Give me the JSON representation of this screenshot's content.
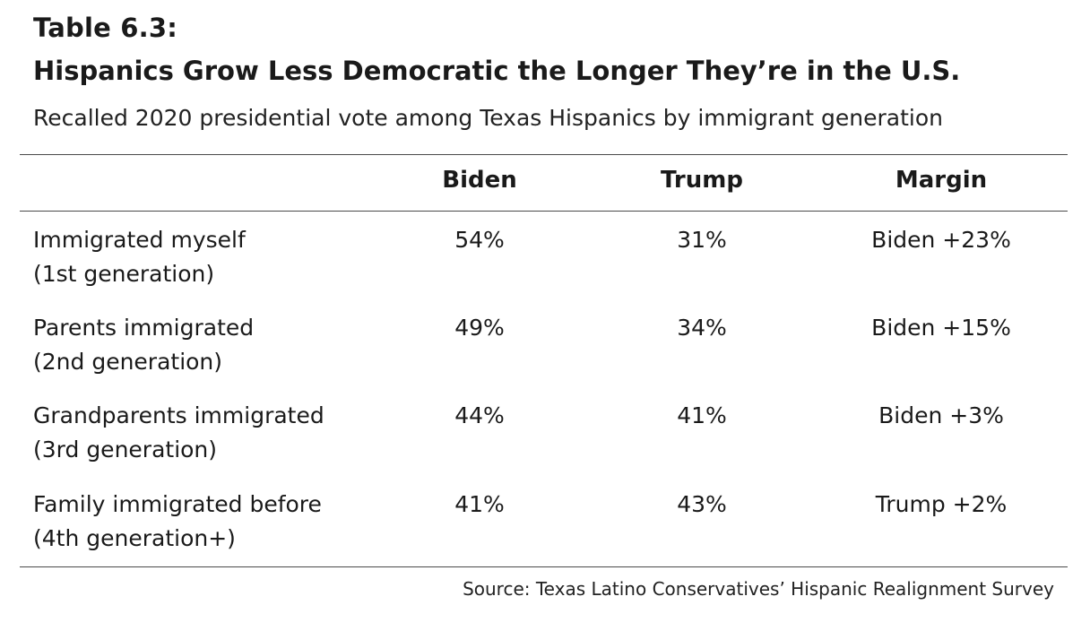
{
  "table_label": "Table 6.3:",
  "title": "Hispanics Grow Less Democratic the Longer They’re in the U.S.",
  "subtitle": "Recalled 2020 presidential vote among Texas Hispanics by immigrant generation",
  "columns": [
    "Biden",
    "Trump",
    "Margin"
  ],
  "rows": [
    {
      "label_line1": "Immigrated myself",
      "label_line2": "(1st generation)",
      "biden": "54%",
      "trump": "31%",
      "margin": "Biden +23%"
    },
    {
      "label_line1": "Parents immigrated",
      "label_line2": "(2nd generation)",
      "biden": "49%",
      "trump": "34%",
      "margin": "Biden +15%"
    },
    {
      "label_line1": "Grandparents immigrated",
      "label_line2": "(3rd generation)",
      "biden": "44%",
      "trump": "41%",
      "margin": "Biden +3%"
    },
    {
      "label_line1": "Family immigrated before",
      "label_line2": "(4th generation+)",
      "biden": "41%",
      "trump": "43%",
      "margin": "Trump +2%"
    }
  ],
  "source": "Source: Texas Latino Conservatives’ Hispanic Realignment Survey"
}
